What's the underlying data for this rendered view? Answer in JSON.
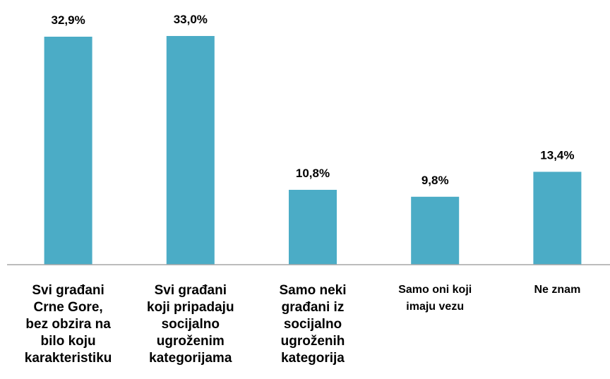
{
  "chart_data": {
    "type": "bar",
    "categories": [
      "Svi građani\nCrne Gore,\nbez obzira na\nbilo koju\nkarakteristiku",
      "Svi građani\nkoji pripadaju\nsocijalno\nugroženim\nkategorijama",
      "Samo neki\ngrađani iz\nsocijalno\nugroženih\nkategorija",
      "Samo oni koji\nimaju vezu",
      "Ne znam"
    ],
    "values": [
      32.9,
      33.0,
      10.8,
      9.8,
      13.4
    ],
    "value_labels": [
      "32,9%",
      "33,0%",
      "10,8%",
      "9,8%",
      "13,4%"
    ],
    "color": "#4bacc6"
  }
}
